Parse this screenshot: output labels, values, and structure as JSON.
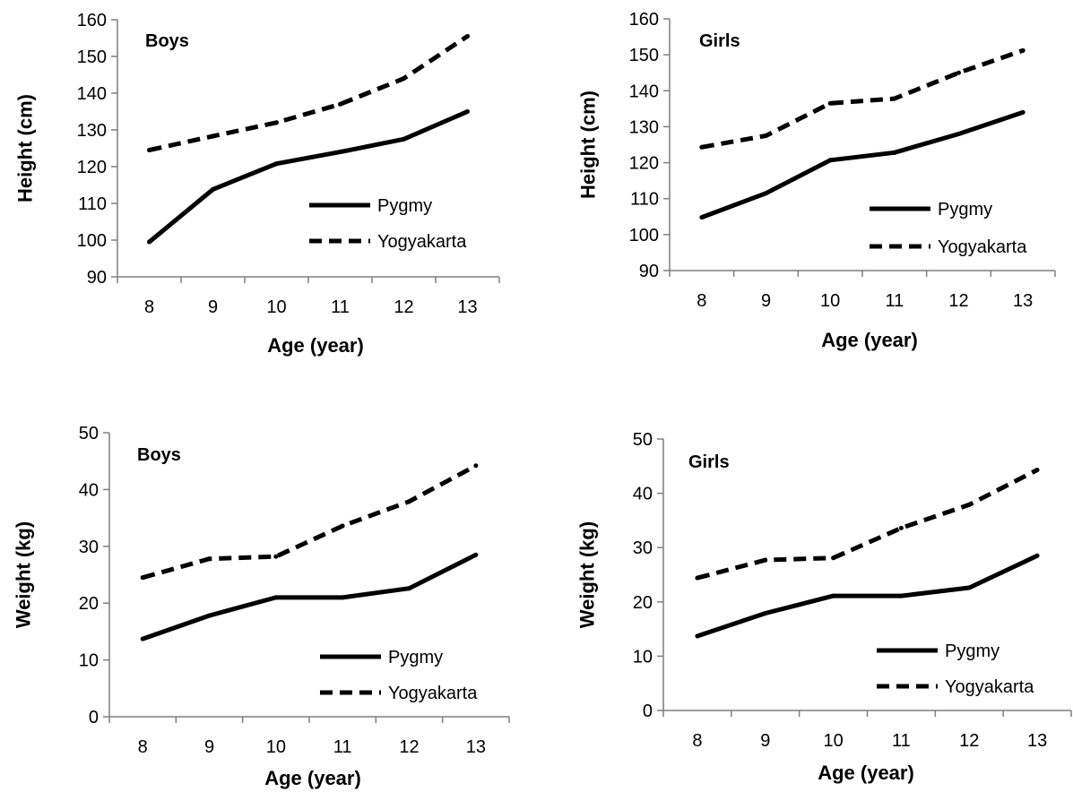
{
  "chart_data": [
    {
      "type": "line",
      "title": "Boys",
      "xlabel": "Age (year)",
      "ylabel": "Height (cm)",
      "categories": [
        "8",
        "9",
        "10",
        "11",
        "12",
        "13"
      ],
      "yticks": [
        "90",
        "100",
        "110",
        "120",
        "130",
        "140",
        "150",
        "160"
      ],
      "ylim": [
        90,
        160
      ],
      "grid": false,
      "legend_position": "bottom-right",
      "series": [
        {
          "name": "Pygmy",
          "style": "solid",
          "values": [
            99.5,
            113.8,
            120.8,
            124.0,
            127.5,
            135.0
          ]
        },
        {
          "name": "Yogyakarta",
          "style": "dashed",
          "values": [
            124.5,
            128.3,
            132.0,
            137.0,
            144.0,
            155.5
          ]
        }
      ]
    },
    {
      "type": "line",
      "title": "Girls",
      "xlabel": "Age (year)",
      "ylabel": "Height (cm)",
      "categories": [
        "8",
        "9",
        "10",
        "11",
        "12",
        "13"
      ],
      "yticks": [
        "90",
        "100",
        "110",
        "120",
        "130",
        "140",
        "150",
        "160"
      ],
      "ylim": [
        90,
        160
      ],
      "grid": false,
      "legend_position": "bottom-right",
      "series": [
        {
          "name": "Pygmy",
          "style": "solid",
          "values": [
            104.8,
            111.5,
            120.7,
            122.8,
            128.0,
            134.0
          ]
        },
        {
          "name": "Yogyakarta",
          "style": "dashed",
          "values": [
            124.3,
            127.5,
            136.5,
            137.8,
            145.0,
            151.2
          ]
        }
      ]
    },
    {
      "type": "line",
      "title": "Boys",
      "xlabel": "Age (year)",
      "ylabel": "Weight (kg)",
      "categories": [
        "8",
        "9",
        "10",
        "11",
        "12",
        "13"
      ],
      "yticks": [
        "0",
        "10",
        "20",
        "30",
        "40",
        "50"
      ],
      "ylim": [
        0,
        50
      ],
      "grid": false,
      "legend_position": "bottom-right",
      "series": [
        {
          "name": "Pygmy",
          "style": "solid",
          "values": [
            13.7,
            17.8,
            21.0,
            21.0,
            22.6,
            28.5
          ]
        },
        {
          "name": "Yogyakarta",
          "style": "dashed",
          "values": [
            24.5,
            27.8,
            28.2,
            33.6,
            37.9,
            44.2
          ]
        }
      ]
    },
    {
      "type": "line",
      "title": "Girls",
      "xlabel": "Age (year)",
      "ylabel": "Weight (kg)",
      "categories": [
        "8",
        "9",
        "10",
        "11",
        "12",
        "13"
      ],
      "yticks": [
        "0",
        "10",
        "20",
        "30",
        "40",
        "50"
      ],
      "ylim": [
        0,
        50
      ],
      "grid": false,
      "legend_position": "bottom-right",
      "series": [
        {
          "name": "Pygmy",
          "style": "solid",
          "values": [
            13.7,
            17.9,
            21.1,
            21.1,
            22.6,
            28.5
          ]
        },
        {
          "name": "Yogyakarta",
          "style": "dashed",
          "values": [
            24.4,
            27.7,
            28.1,
            33.6,
            37.9,
            44.3
          ]
        }
      ]
    }
  ]
}
